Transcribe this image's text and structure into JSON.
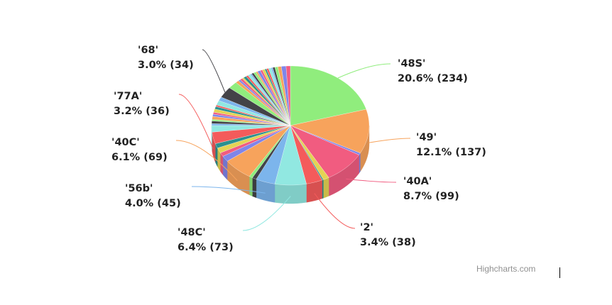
{
  "chart_data": {
    "type": "pie",
    "variant": "3d",
    "title": "",
    "palette": [
      "#7cb5ec",
      "#434348",
      "#90ed7d",
      "#f7a35c",
      "#8085e9",
      "#f15c80",
      "#e4d354",
      "#2b908f",
      "#f45b5b",
      "#91e8e1"
    ],
    "slices": [
      {
        "name": "'48S'",
        "value": 234,
        "label": "20.6% (234)"
      },
      {
        "name": "'49'",
        "value": 137,
        "label": "12.1% (137)"
      },
      {
        "value": 6
      },
      {
        "name": "'40A'",
        "value": 99,
        "label": "8.7% (99)"
      },
      {
        "value": 14
      },
      {
        "value": 3
      },
      {
        "name": "'2'",
        "value": 38,
        "label": "3.4% (38)"
      },
      {
        "name": "'48C'",
        "value": 73,
        "label": "6.4% (73)"
      },
      {
        "name": "'56b'",
        "value": 45,
        "label": "4.0% (45)"
      },
      {
        "value": 10
      },
      {
        "value": 8
      },
      {
        "name": "'40C'",
        "value": 69,
        "label": "6.1% (69)"
      },
      {
        "value": 18
      },
      {
        "value": 12
      },
      {
        "value": 16
      },
      {
        "value": 14
      },
      {
        "name": "'77A'",
        "value": 36,
        "label": "3.2% (36)"
      },
      {
        "value": 20
      },
      {
        "value": 6
      },
      {
        "value": 8
      },
      {
        "value": 5
      },
      {
        "value": 9
      },
      {
        "value": 7
      },
      {
        "value": 6
      },
      {
        "value": 10
      },
      {
        "value": 8
      },
      {
        "value": 5
      },
      {
        "value": 14
      },
      {
        "value": 12
      },
      {
        "name": "'68'",
        "value": 34,
        "label": "3.0% (34)"
      },
      {
        "value": 22
      },
      {
        "value": 8
      },
      {
        "value": 5
      },
      {
        "value": 6
      },
      {
        "value": 4
      },
      {
        "value": 7
      },
      {
        "value": 5
      },
      {
        "value": 6
      },
      {
        "value": 4
      },
      {
        "value": 5
      },
      {
        "value": 6
      },
      {
        "value": 4
      },
      {
        "value": 7
      },
      {
        "value": 5
      },
      {
        "value": 6
      },
      {
        "value": 4
      },
      {
        "value": 5
      },
      {
        "value": 6
      },
      {
        "value": 4
      },
      {
        "value": 5
      },
      {
        "value": 7
      },
      {
        "value": 8
      },
      {
        "value": 11
      },
      {
        "value": 10
      }
    ]
  },
  "credit": "Highcharts.com"
}
